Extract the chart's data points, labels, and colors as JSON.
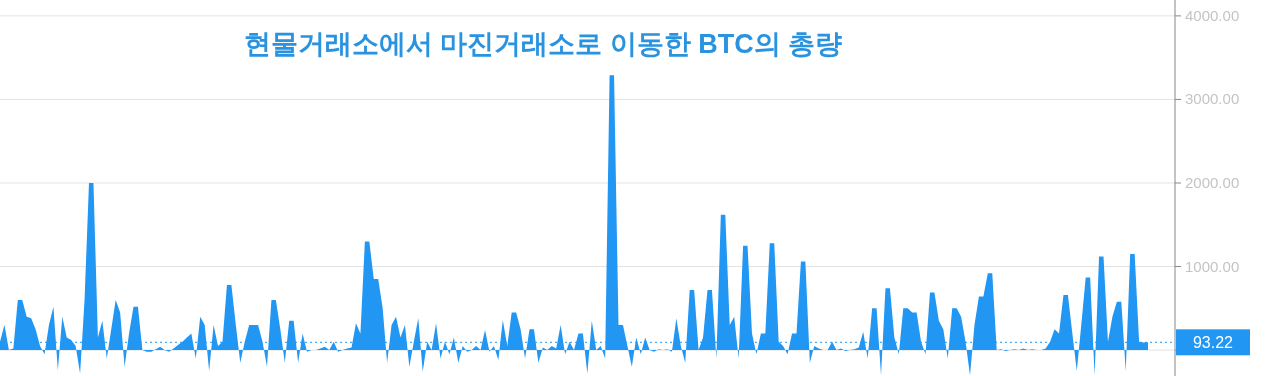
{
  "chart_data": {
    "type": "area",
    "title": "현물거래소에서 마진거래소로 이동한 BTC의 총량",
    "ylim": [
      -310,
      4190
    ],
    "yticks": [
      {
        "value": 0,
        "label": null
      },
      {
        "value": 1000,
        "label": "1000.00"
      },
      {
        "value": 2000,
        "label": "2000.00"
      },
      {
        "value": 3000,
        "label": "3000.00"
      },
      {
        "value": 4000,
        "label": "4000.00"
      }
    ],
    "tick_labels": "y",
    "grid": "y",
    "ref_lines": [
      {
        "axis": "y",
        "value": 93.22,
        "label": "93.22",
        "color": "#2196f3",
        "line_style": "dotted"
      }
    ],
    "categories": [
      null,
      null,
      null,
      null,
      null,
      null,
      null,
      null,
      null,
      null,
      null,
      null,
      null,
      null,
      null,
      null,
      null,
      null,
      null,
      null,
      null,
      null,
      null,
      null,
      null,
      null,
      null,
      null,
      null,
      null,
      null,
      null,
      null,
      null,
      null,
      null,
      null,
      null,
      null,
      null,
      null,
      null,
      null,
      null,
      null,
      null,
      null,
      null,
      null,
      null,
      null,
      null,
      null,
      null,
      null,
      null,
      null,
      null,
      null,
      null,
      null,
      null,
      null,
      null,
      null,
      null,
      null,
      null,
      null,
      null,
      null,
      null,
      null,
      null,
      null,
      null,
      null,
      null,
      null,
      null,
      null,
      null,
      null,
      null,
      null,
      null,
      null,
      null,
      null,
      null,
      null,
      null,
      null,
      null,
      null,
      null,
      null,
      null,
      null,
      null,
      null,
      null,
      null,
      null,
      null,
      null,
      null,
      null,
      null,
      null,
      null,
      null,
      null,
      null,
      null,
      null,
      null,
      null,
      null,
      null,
      null,
      null,
      null,
      null,
      null,
      null,
      null,
      null,
      null,
      null,
      null,
      null,
      null,
      null,
      null,
      null,
      null,
      null,
      null,
      null,
      null,
      null,
      null,
      null,
      null,
      null,
      null,
      null,
      null,
      null,
      null,
      null,
      null,
      null,
      null,
      null,
      null,
      null,
      null,
      null,
      null,
      null,
      null,
      null,
      null,
      null,
      null,
      null,
      null,
      null,
      null,
      null,
      null,
      null,
      null,
      null,
      null,
      null,
      null,
      null,
      null,
      null,
      null,
      null,
      null,
      null,
      null,
      null,
      null,
      null,
      null,
      null,
      null,
      null,
      null,
      null,
      null,
      null,
      null,
      null,
      null,
      null,
      null,
      null,
      null,
      null,
      null,
      null,
      null,
      null,
      null,
      null,
      null,
      null,
      null,
      null,
      null,
      null,
      null,
      null,
      null,
      null,
      null,
      null,
      null,
      null,
      null,
      null,
      null,
      null,
      null,
      null,
      null,
      null,
      null,
      null,
      null,
      null,
      null,
      null,
      null,
      null,
      null,
      null,
      null,
      null,
      null,
      null,
      null,
      null,
      null,
      null,
      null,
      null,
      null,
      null,
      null,
      null,
      null
    ],
    "series": [
      {
        "color": "#2196f3",
        "values": [
          100,
          300,
          0,
          20,
          600,
          600,
          400,
          380,
          250,
          50,
          -50,
          300,
          520,
          -240,
          400,
          150,
          120,
          50,
          -280,
          600,
          2000,
          2000,
          150,
          350,
          -100,
          250,
          600,
          450,
          -200,
          200,
          520,
          520,
          0,
          -20,
          -20,
          10,
          40,
          0,
          -20,
          20,
          60,
          100,
          150,
          200,
          -100,
          400,
          300,
          -250,
          300,
          50,
          100,
          780,
          780,
          300,
          -150,
          100,
          300,
          300,
          300,
          100,
          -200,
          600,
          600,
          250,
          -150,
          350,
          350,
          -150,
          200,
          -20,
          0,
          0,
          20,
          40,
          0,
          100,
          -20,
          0,
          20,
          30,
          320,
          200,
          1300,
          1300,
          850,
          850,
          500,
          -150,
          300,
          400,
          150,
          300,
          -200,
          100,
          380,
          -260,
          100,
          0,
          320,
          -100,
          100,
          -50,
          150,
          -150,
          50,
          -20,
          0,
          50,
          0,
          240,
          -20,
          50,
          -120,
          360,
          50,
          450,
          450,
          250,
          -100,
          250,
          250,
          -150,
          30,
          0,
          50,
          20,
          300,
          -50,
          100,
          0,
          200,
          200,
          -280,
          350,
          0,
          50,
          -100,
          3290,
          3290,
          300,
          300,
          50,
          -200,
          150,
          -50,
          150,
          0,
          -20,
          10,
          0,
          10,
          -20,
          380,
          50,
          -150,
          720,
          720,
          0,
          150,
          720,
          720,
          -100,
          1620,
          1620,
          300,
          400,
          -100,
          1250,
          1250,
          200,
          -50,
          200,
          200,
          1280,
          1280,
          100,
          50,
          -50,
          200,
          200,
          1060,
          1060,
          -150,
          50,
          20,
          0,
          0,
          100,
          0,
          20,
          -10,
          0,
          10,
          30,
          220,
          -100,
          500,
          500,
          -300,
          740,
          740,
          150,
          -50,
          500,
          500,
          450,
          450,
          100,
          -50,
          690,
          690,
          350,
          250,
          -100,
          500,
          500,
          400,
          100,
          -300,
          300,
          640,
          640,
          920,
          920,
          0,
          10,
          -10,
          0,
          10,
          0,
          20,
          0,
          10,
          0,
          0,
          20,
          100,
          250,
          200,
          660,
          660,
          200,
          -250,
          300,
          870,
          870,
          -300,
          1120,
          1120,
          100,
          400,
          580,
          580,
          -250,
          1150,
          1150,
          100,
          90,
          93.22
        ]
      }
    ]
  }
}
